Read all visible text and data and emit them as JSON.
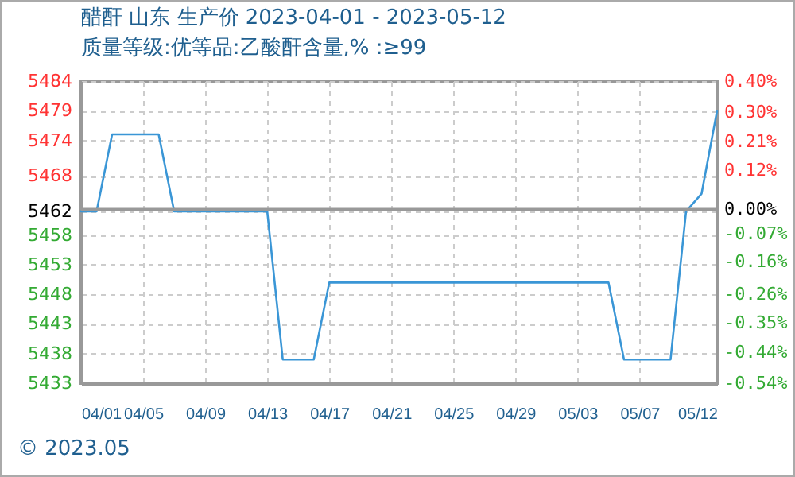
{
  "chart_data": {
    "type": "line",
    "title": "醋酐 山东 生产价 2023-04-01 - 2023-05-12",
    "subtitle": "质量等级:优等品:乙酸酐含量,% :≥99",
    "annotations": [
      "© 2023.05"
    ],
    "x": [
      "2023-04-01",
      "2023-04-02",
      "2023-04-03",
      "2023-04-04",
      "2023-04-05",
      "2023-04-06",
      "2023-04-07",
      "2023-04-08",
      "2023-04-09",
      "2023-04-10",
      "2023-04-11",
      "2023-04-12",
      "2023-04-13",
      "2023-04-14",
      "2023-04-15",
      "2023-04-16",
      "2023-04-17",
      "2023-04-18",
      "2023-04-19",
      "2023-04-20",
      "2023-04-21",
      "2023-04-22",
      "2023-04-23",
      "2023-04-24",
      "2023-04-25",
      "2023-04-26",
      "2023-04-27",
      "2023-04-28",
      "2023-04-29",
      "2023-04-30",
      "2023-05-01",
      "2023-05-02",
      "2023-05-03",
      "2023-05-04",
      "2023-05-05",
      "2023-05-06",
      "2023-05-07",
      "2023-05-08",
      "2023-05-09",
      "2023-05-10",
      "2023-05-11",
      "2023-05-12"
    ],
    "series": [
      {
        "color": "#3a96d6",
        "values": [
          5462,
          5462,
          5475,
          5475,
          5475,
          5475,
          5462,
          5462,
          5462,
          5462,
          5462,
          5462,
          5462,
          5437,
          5437,
          5437,
          5450,
          5450,
          5450,
          5450,
          5450,
          5450,
          5450,
          5450,
          5450,
          5450,
          5450,
          5450,
          5450,
          5450,
          5450,
          5450,
          5450,
          5450,
          5450,
          5437,
          5437,
          5437,
          5437,
          5462,
          5465,
          5479
        ]
      }
    ],
    "xlim": [
      "2023-04-01",
      "2023-05-12"
    ],
    "xticks": [
      {
        "value": "2023-04-01",
        "label": "04/01"
      },
      {
        "value": "2023-04-05",
        "label": "04/05"
      },
      {
        "value": "2023-04-09",
        "label": "04/09"
      },
      {
        "value": "2023-04-13",
        "label": "04/13"
      },
      {
        "value": "2023-04-17",
        "label": "04/17"
      },
      {
        "value": "2023-04-21",
        "label": "04/21"
      },
      {
        "value": "2023-04-25",
        "label": "04/25"
      },
      {
        "value": "2023-04-29",
        "label": "04/29"
      },
      {
        "value": "2023-05-03",
        "label": "05/03"
      },
      {
        "value": "2023-05-07",
        "label": "05/07"
      },
      {
        "value": "2023-05-12",
        "label": "05/12"
      }
    ],
    "ylim": [
      5433,
      5484
    ],
    "yticks": [
      5433,
      5438,
      5443,
      5448,
      5453,
      5458,
      5462,
      5468,
      5474,
      5479,
      5484
    ],
    "y2lim": [
      -0.535,
      0.395
    ],
    "y2ticks": [
      {
        "value": -0.535,
        "label": "-0.54%"
      },
      {
        "value": -0.44,
        "label": "-0.44%"
      },
      {
        "value": -0.35,
        "label": "-0.35%"
      },
      {
        "value": -0.26,
        "label": "-0.26%"
      },
      {
        "value": -0.16,
        "label": "-0.16%"
      },
      {
        "value": -0.074,
        "label": "-0.07%"
      },
      {
        "value": 0,
        "label": "0.00%"
      },
      {
        "value": 0.12,
        "label": "0.12%"
      },
      {
        "value": 0.21,
        "label": "0.21%"
      },
      {
        "value": 0.3,
        "label": "0.30%"
      },
      {
        "value": 0.395,
        "label": "0.40%"
      }
    ],
    "ref_lines": [
      {
        "axis": "y2",
        "value": 0,
        "color": "#999999"
      }
    ],
    "grid": true,
    "marker": "none",
    "line_style": "solid"
  }
}
